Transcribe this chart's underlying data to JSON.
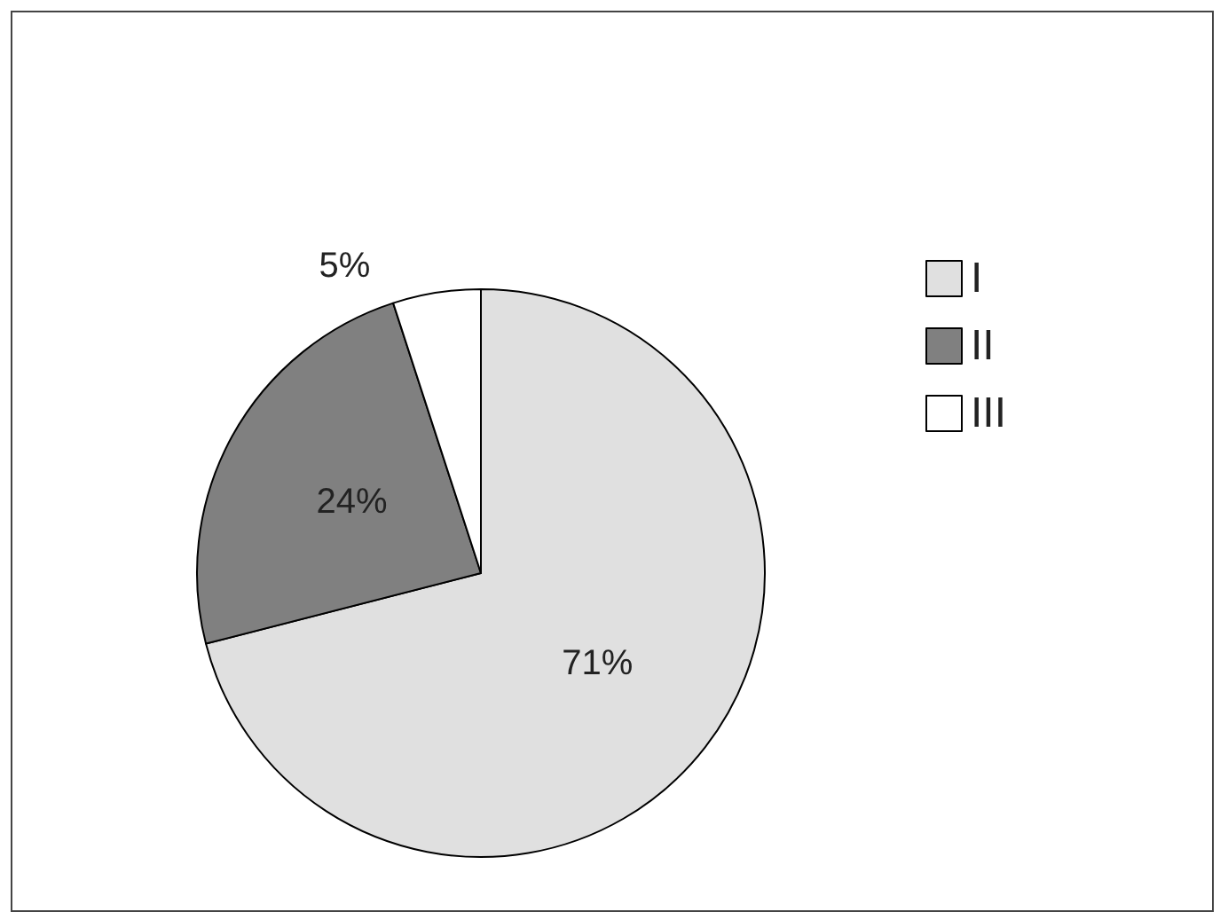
{
  "chart_data": {
    "type": "pie",
    "categories": [
      "I",
      "II",
      "III"
    ],
    "values": [
      71,
      24,
      5
    ],
    "colors": [
      "#e0e0e0",
      "#808080",
      "#ffffff"
    ],
    "value_labels": [
      "71%",
      "24%",
      "5%"
    ],
    "legend": "top right"
  }
}
